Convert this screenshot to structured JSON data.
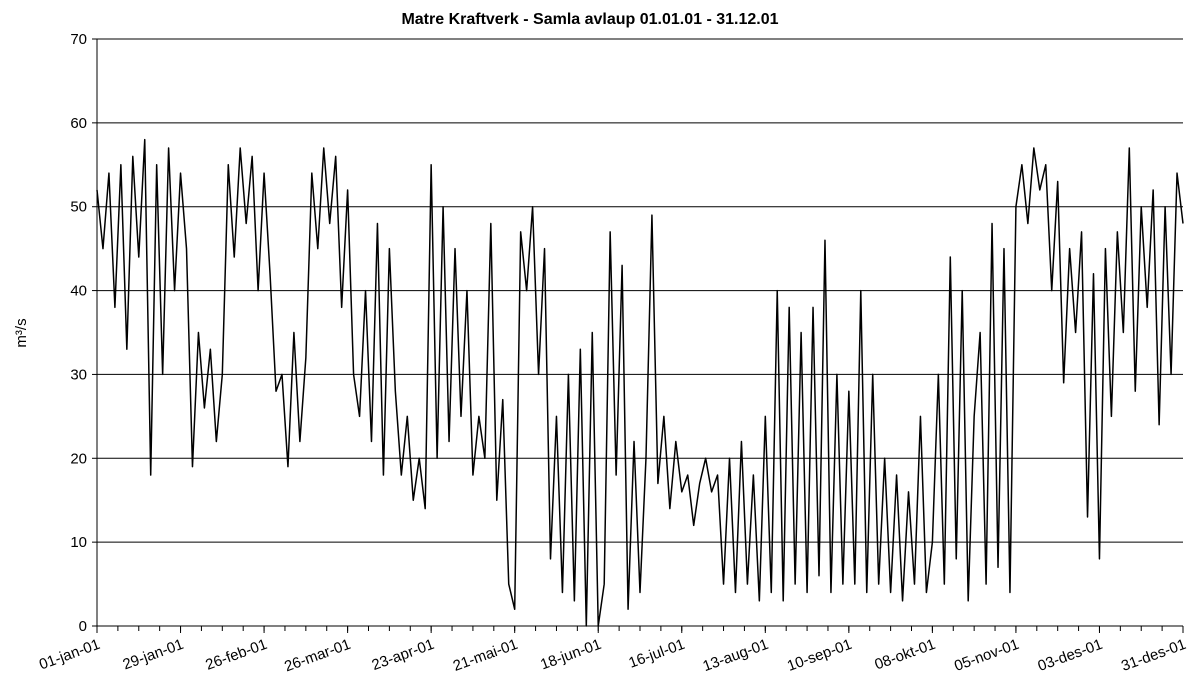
{
  "chart_data": {
    "type": "line",
    "title": "Matre Kraftverk - Samla avlaup 01.01.01 - 31.12.01",
    "y_label": "m³/s",
    "categories": [
      "01-jan-01",
      null,
      null,
      null,
      null,
      null,
      null,
      null,
      null,
      null,
      null,
      null,
      null,
      null,
      "29-jan-01",
      null,
      null,
      null,
      null,
      null,
      null,
      null,
      null,
      null,
      null,
      null,
      null,
      null,
      "26-feb-01",
      null,
      null,
      null,
      null,
      null,
      null,
      null,
      null,
      null,
      null,
      null,
      null,
      null,
      "26-mar-01",
      null,
      null,
      null,
      null,
      null,
      null,
      null,
      null,
      null,
      null,
      null,
      null,
      null,
      "23-apr-01",
      null,
      null,
      null,
      null,
      null,
      null,
      null,
      null,
      null,
      null,
      null,
      null,
      null,
      "21-mai-01",
      null,
      null,
      null,
      null,
      null,
      null,
      null,
      null,
      null,
      null,
      null,
      null,
      null,
      "18-jun-01",
      null,
      null,
      null,
      null,
      null,
      null,
      null,
      null,
      null,
      null,
      null,
      null,
      null,
      "16-jul-01",
      null,
      null,
      null,
      null,
      null,
      null,
      null,
      null,
      null,
      null,
      null,
      null,
      null,
      "13-aug-01",
      null,
      null,
      null,
      null,
      null,
      null,
      null,
      null,
      null,
      null,
      null,
      null,
      null,
      "10-sep-01",
      null,
      null,
      null,
      null,
      null,
      null,
      null,
      null,
      null,
      null,
      null,
      null,
      null,
      "08-okt-01",
      null,
      null,
      null,
      null,
      null,
      null,
      null,
      null,
      null,
      null,
      null,
      null,
      null,
      "05-nov-01",
      null,
      null,
      null,
      null,
      null,
      null,
      null,
      null,
      null,
      null,
      null,
      null,
      null,
      "03-des-01",
      null,
      null,
      null,
      null,
      null,
      null,
      null,
      null,
      null,
      null,
      null,
      null,
      null,
      "31-des-01"
    ],
    "values": [
      52,
      45,
      54,
      38,
      55,
      33,
      56,
      44,
      58,
      18,
      55,
      30,
      57,
      40,
      54,
      45,
      19,
      35,
      26,
      33,
      22,
      30,
      55,
      44,
      57,
      48,
      56,
      40,
      54,
      42,
      28,
      30,
      19,
      35,
      22,
      32,
      54,
      45,
      57,
      48,
      56,
      38,
      52,
      30,
      25,
      40,
      22,
      48,
      18,
      45,
      28,
      18,
      25,
      15,
      20,
      14,
      55,
      20,
      50,
      22,
      45,
      25,
      40,
      18,
      25,
      20,
      48,
      15,
      27,
      5,
      2,
      47,
      40,
      50,
      30,
      45,
      8,
      25,
      4,
      30,
      3,
      33,
      0,
      35,
      0,
      5,
      47,
      18,
      43,
      2,
      22,
      4,
      20,
      49,
      17,
      25,
      14,
      22,
      16,
      18,
      12,
      17,
      20,
      16,
      18,
      5,
      20,
      4,
      22,
      5,
      18,
      3,
      25,
      4,
      40,
      3,
      38,
      5,
      35,
      4,
      38,
      6,
      46,
      4,
      30,
      5,
      28,
      5,
      40,
      4,
      30,
      5,
      20,
      4,
      18,
      3,
      16,
      5,
      25,
      4,
      10,
      30,
      5,
      44,
      8,
      40,
      3,
      25,
      35,
      5,
      48,
      7,
      45,
      4,
      50,
      55,
      48,
      57,
      52,
      55,
      40,
      53,
      29,
      45,
      35,
      47,
      13,
      42,
      8,
      45,
      25,
      47,
      35,
      57,
      28,
      50,
      38,
      52,
      24,
      50,
      30,
      54,
      48
    ],
    "color": "#000000",
    "ylim": [
      0,
      70
    ],
    "yticks": [
      0,
      10,
      20,
      30,
      40,
      50,
      60,
      70
    ],
    "grid": true
  }
}
